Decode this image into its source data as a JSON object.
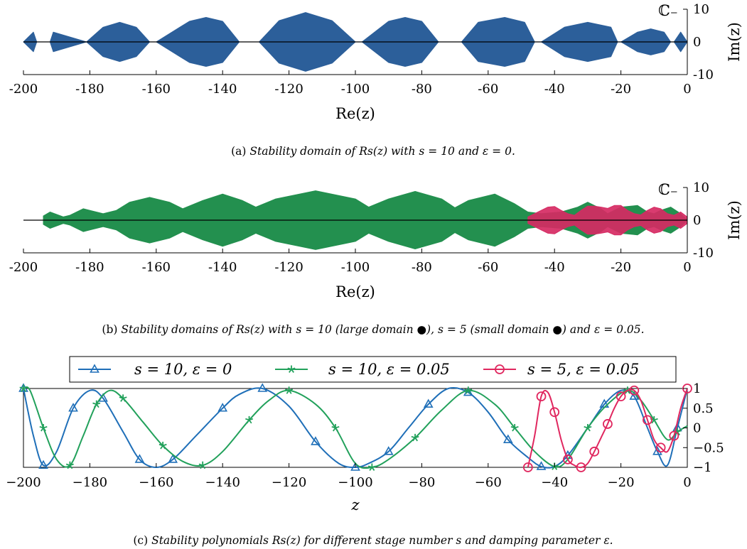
{
  "colors": {
    "blue_domain": "#2c5f9a",
    "green_domain": "#23904f",
    "pink_domain": "#d62a63",
    "line_blue": "#1f6fb8",
    "line_green": "#22a15b",
    "line_pink": "#e0275f"
  },
  "chart_data": [
    {
      "id": "a",
      "type": "area",
      "xlabel": "Re(z)",
      "ylabel": "Im(z)",
      "region_label": "ℂ₋",
      "xlim": [
        -200,
        0
      ],
      "ylim": [
        -10,
        10
      ],
      "x_ticks": [
        "-200",
        "-180",
        "-160",
        "-140",
        "-120",
        "-100",
        "-80",
        "-60",
        "-40",
        "-20",
        "0"
      ],
      "y_ticks": [
        "10",
        "0",
        "-10"
      ],
      "series": [
        {
          "color": "#2c5f9a",
          "x": [
            -200,
            -197,
            -196,
            -192,
            -191,
            -181,
            -176,
            -171,
            -166,
            -162,
            -160,
            -150,
            -145,
            -140,
            -135,
            -132,
            -129,
            -123,
            -115,
            -107,
            -100,
            -98,
            -90,
            -85,
            -80,
            -75,
            -72,
            -68,
            -63,
            -55,
            -49,
            -46,
            -44,
            -37,
            -30,
            -23,
            -21,
            -20,
            -15,
            -11,
            -7,
            -5,
            -4,
            -2,
            0
          ],
          "upper": [
            0,
            3,
            0,
            0,
            3,
            0,
            4.5,
            6,
            4.5,
            0,
            0,
            6.3,
            7.5,
            6.3,
            0,
            0,
            0,
            6.5,
            9,
            6.5,
            0,
            0,
            6.3,
            7.5,
            6.3,
            0,
            0,
            0,
            6,
            7.5,
            6,
            0,
            0,
            4.5,
            6,
            4.5,
            0,
            0,
            3,
            4,
            3,
            0,
            0,
            3,
            0
          ]
        }
      ],
      "caption_prefix": "(a) ",
      "caption": "Stability domain of Rs(z) with s = 10 and ε = 0."
    },
    {
      "id": "b",
      "type": "area",
      "xlabel": "Re(z)",
      "ylabel": "Im(z)",
      "region_label": "ℂ₋",
      "xlim": [
        -200,
        0
      ],
      "ylim": [
        -10,
        10
      ],
      "x_ticks": [
        "-200",
        "-180",
        "-160",
        "-140",
        "-120",
        "-100",
        "-80",
        "-60",
        "-40",
        "-20",
        "0"
      ],
      "y_ticks": [
        "10",
        "0",
        "-10"
      ],
      "series": [
        {
          "color": "#23904f",
          "x": [
            -194,
            -192,
            -188,
            -186,
            -182,
            -176,
            -172,
            -168,
            -162,
            -156,
            -152,
            -146,
            -140,
            -134,
            -130,
            -124,
            -112,
            -100,
            -96,
            -90,
            -82,
            -74,
            -70,
            -66,
            -58,
            -52,
            -48,
            -44,
            -38,
            -33,
            -30,
            -26,
            -24,
            -20,
            -15,
            -12,
            -10,
            -8,
            -5,
            -2,
            0
          ],
          "upper": [
            1.3,
            2.5,
            1,
            1.5,
            3.5,
            2,
            3,
            5.5,
            7,
            5.5,
            3.5,
            6,
            8,
            6,
            4,
            6.5,
            9,
            6.5,
            4,
            6.5,
            8.8,
            6.5,
            3.8,
            6,
            8,
            5,
            2.5,
            2,
            2.5,
            4,
            5.5,
            3.5,
            2,
            4,
            4.5,
            2.5,
            2,
            3,
            4,
            2,
            0
          ]
        },
        {
          "color": "#d62a63",
          "x": [
            -48,
            -46,
            -42,
            -40,
            -38,
            -36,
            -34,
            -32,
            -30,
            -28,
            -26,
            -24,
            -22,
            -20,
            -18,
            -16,
            -14,
            -12,
            -10,
            -8,
            -6,
            -4,
            -2,
            0
          ],
          "upper": [
            1,
            2,
            4,
            4.2,
            3,
            2,
            1.5,
            3,
            4.3,
            4.3,
            4,
            3.6,
            4.5,
            4.5,
            3,
            2,
            1.6,
            3,
            4,
            3.5,
            2,
            1.5,
            2.5,
            1
          ]
        }
      ],
      "caption_prefix": "(b) ",
      "caption": "Stability domains of Rs(z) with s = 10 (large domain ●), s = 5 (small domain ●) and ε = 0.05."
    },
    {
      "id": "c",
      "type": "line",
      "xlabel": "z",
      "xlim": [
        -200,
        0
      ],
      "ylim": [
        -1,
        1
      ],
      "x_ticks": [
        "−200",
        "−180",
        "−160",
        "−140",
        "−120",
        "−100",
        "−80",
        "−60",
        "−40",
        "−20",
        "0"
      ],
      "y_ticks": [
        "1",
        "0.5",
        "0",
        "−0.5",
        "−1"
      ],
      "series": [
        {
          "name": "s = 10, ε = 0",
          "color": "#1f6fb8",
          "marker": "triangle",
          "x": [
            -200,
            -197,
            -194,
            -190,
            -185,
            -180,
            -176,
            -170,
            -165,
            -160,
            -155,
            -148,
            -140,
            -135,
            -128,
            -120,
            -112,
            -105,
            -100,
            -96,
            -90,
            -84,
            -78,
            -72,
            -66,
            -60,
            -54,
            -48,
            -44,
            -40,
            -36,
            -30,
            -25,
            -20,
            -16,
            -12,
            -9,
            -6,
            -3,
            0
          ],
          "y": [
            1,
            -0.2,
            -0.95,
            -0.6,
            0.5,
            0.95,
            0.75,
            -0.1,
            -0.8,
            -1,
            -0.8,
            -0.2,
            0.5,
            0.85,
            1,
            0.55,
            -0.35,
            -0.9,
            -1,
            -0.9,
            -0.6,
            0,
            0.6,
            1,
            0.9,
            0.4,
            -0.3,
            -0.75,
            -0.98,
            -0.98,
            -0.7,
            0,
            0.6,
            0.95,
            0.8,
            0,
            -0.6,
            -0.95,
            0,
            1
          ]
        },
        {
          "name": "s = 10, ε = 0.05",
          "color": "#22a15b",
          "marker": "star",
          "x": [
            -200,
            -198,
            -194,
            -190,
            -186,
            -182,
            -178,
            -174,
            -170,
            -164,
            -158,
            -152,
            -146,
            -140,
            -132,
            -126,
            -120,
            -112,
            -106,
            -100,
            -95,
            -90,
            -82,
            -74,
            -66,
            -58,
            -52,
            -46,
            -40,
            -36,
            -30,
            -24,
            -18,
            -14,
            -10,
            -6,
            -3,
            0
          ],
          "y": [
            1,
            0.95,
            0,
            -0.8,
            -0.95,
            -0.2,
            0.6,
            0.95,
            0.75,
            0.15,
            -0.45,
            -0.85,
            -0.95,
            -0.6,
            0.2,
            0.7,
            0.95,
            0.6,
            0,
            -0.9,
            -1,
            -0.8,
            -0.25,
            0.45,
            0.95,
            0.6,
            0,
            -0.6,
            -0.98,
            -0.8,
            0,
            0.6,
            0.95,
            0.7,
            0.2,
            -0.3,
            -0.1,
            0.05
          ]
        },
        {
          "name": "s = 5, ε = 0.05",
          "color": "#e0275f",
          "marker": "circle",
          "x": [
            -48,
            -46,
            -44,
            -42,
            -40,
            -38,
            -36,
            -34,
            -32,
            -30,
            -28,
            -26,
            -24,
            -22,
            -20,
            -18,
            -16,
            -14,
            -12,
            -10,
            -8,
            -6,
            -4,
            -2,
            0
          ],
          "y": [
            -1,
            -0.2,
            0.8,
            0.9,
            0.4,
            -0.3,
            -0.8,
            -0.95,
            -1,
            -0.9,
            -0.6,
            -0.25,
            0.1,
            0.5,
            0.8,
            0.95,
            0.95,
            0.7,
            0.2,
            -0.3,
            -0.5,
            -0.6,
            -0.2,
            0.5,
            1
          ]
        }
      ],
      "caption_prefix": "(c) ",
      "caption": "Stability polynomials Rs(z) for different stage number s and damping parameter ε."
    }
  ]
}
